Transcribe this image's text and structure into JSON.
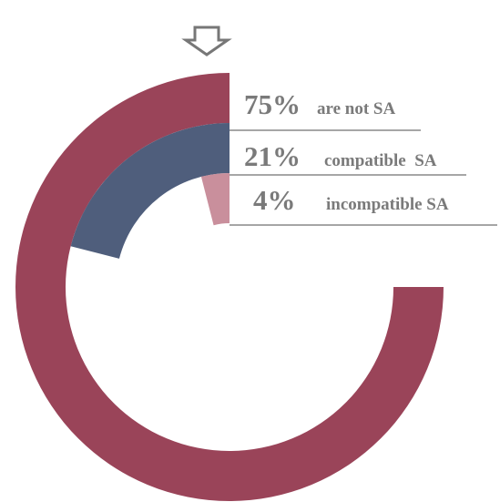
{
  "chart_data": {
    "type": "radial_bar",
    "categories": [
      "are not SA",
      "compatible  SA",
      "incompatible SA"
    ],
    "values": [
      75,
      21,
      4
    ],
    "value_labels": [
      "75%",
      "21%",
      "4%"
    ],
    "colors": [
      "#9a4459",
      "#4f5e7c",
      "#c98f9c"
    ]
  }
}
